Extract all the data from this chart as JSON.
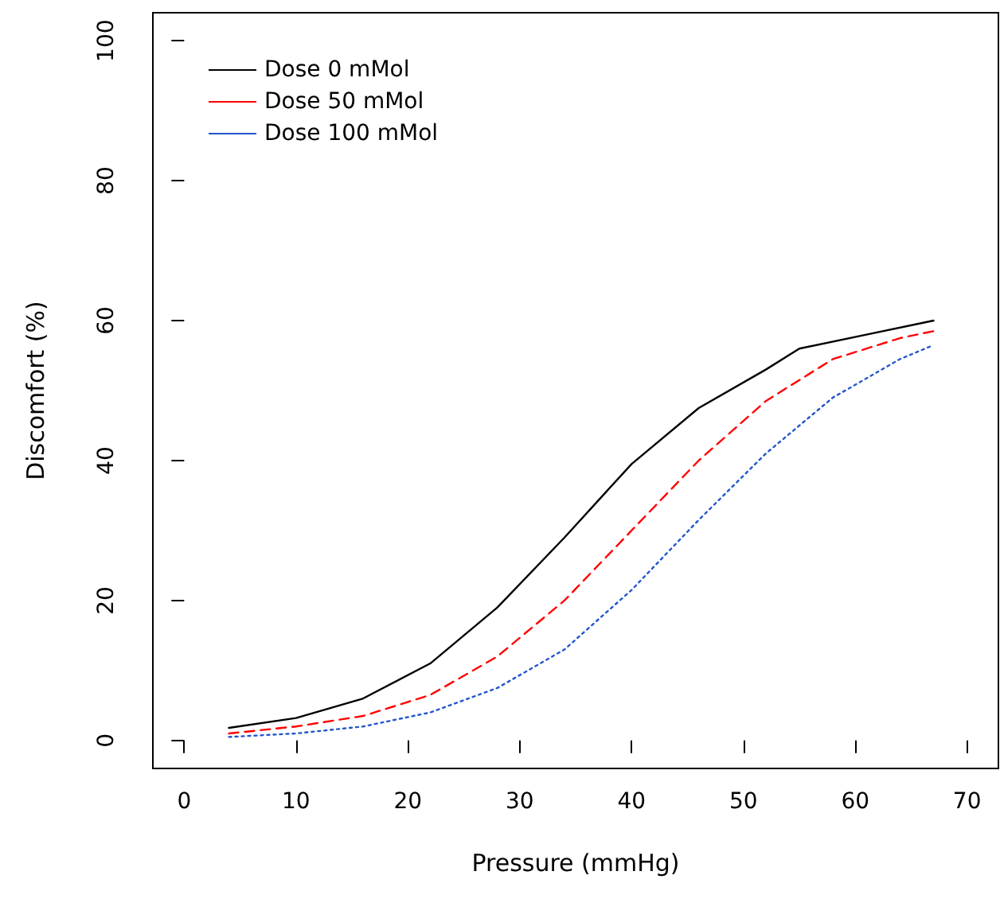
{
  "chart_data": {
    "type": "line",
    "xlabel": "Pressure (mmHg)",
    "ylabel": "Discomfort (%)",
    "xlim": [
      -2.8,
      72.8
    ],
    "ylim": [
      -4,
      104
    ],
    "xticks": [
      0,
      10,
      20,
      30,
      40,
      50,
      60,
      70
    ],
    "yticks": [
      0,
      20,
      40,
      60,
      80,
      100
    ],
    "grid": false,
    "legend": "top left",
    "marker": "none",
    "series": [
      {
        "name": "Dose 0 mMol",
        "color": "#000000",
        "line_style": "solid",
        "x": [
          4,
          10,
          16,
          22,
          28,
          34,
          40,
          46,
          52,
          55,
          61,
          67
        ],
        "values": [
          1.8,
          3.2,
          6,
          11,
          19,
          29,
          39.5,
          47.5,
          53,
          56,
          58,
          60
        ]
      },
      {
        "name": "Dose 50 mMol",
        "color": "#ff0000",
        "line_style": "dashed",
        "x": [
          4,
          10,
          16,
          22,
          28,
          34,
          40,
          46,
          52,
          58,
          64,
          67
        ],
        "values": [
          1,
          2,
          3.5,
          6.5,
          12,
          20,
          30,
          40,
          48.5,
          54.5,
          57.5,
          58.5
        ]
      },
      {
        "name": "Dose 100 mMol",
        "color": "#2255cc",
        "line_style": "dotted",
        "x": [
          4,
          10,
          16,
          22,
          28,
          34,
          40,
          46,
          52,
          58,
          64,
          67
        ],
        "values": [
          0.5,
          1,
          2,
          4,
          7.5,
          13,
          21.5,
          31.5,
          41,
          49,
          54.5,
          56.5
        ]
      }
    ]
  }
}
